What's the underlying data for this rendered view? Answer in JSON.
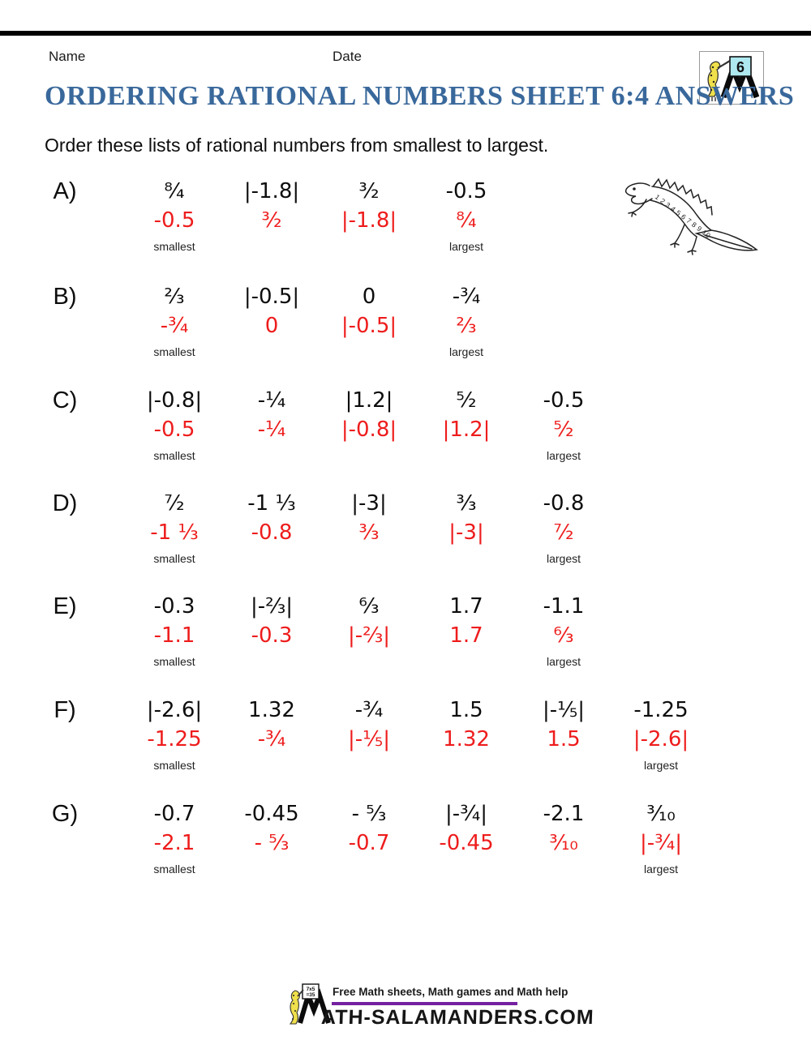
{
  "header": {
    "name_label": "Name",
    "date_label": "Date",
    "logo_number": "6",
    "title": "ORDERING RATIONAL NUMBERS SHEET 6:4 ANSWERS",
    "instruction": "Order these lists of rational numbers from smallest to largest."
  },
  "labels": {
    "smallest": "smallest",
    "largest": "largest"
  },
  "colors": {
    "title_blue": "#39689B",
    "answer_red": "#EE1C1C",
    "footer_purple": "#7420A0",
    "logo_board_cyan": "#AEE9EF",
    "salamander_yellow": "#EFE04C"
  },
  "illustration": {
    "back_numbers": "1 2 3 4 5 6 7 8 9 10"
  },
  "problems": [
    {
      "letter": "A)",
      "question": [
        "⁸⁄₄",
        "|-1.8|",
        "³⁄₂",
        "-0.5"
      ],
      "answer": [
        "-0.5",
        "³⁄₂",
        "|-1.8|",
        "⁸⁄₄"
      ]
    },
    {
      "letter": "B)",
      "question": [
        "²⁄₃",
        "|-0.5|",
        "0",
        "-¾"
      ],
      "answer": [
        "-¾",
        "0",
        "|-0.5|",
        "²⁄₃"
      ]
    },
    {
      "letter": "C)",
      "question": [
        "|-0.8|",
        "-¼",
        "|1.2|",
        "⁵⁄₂",
        "-0.5"
      ],
      "answer": [
        "-0.5",
        "-¼",
        "|-0.8|",
        "|1.2|",
        "⁵⁄₂"
      ]
    },
    {
      "letter": "D)",
      "question": [
        "⁷⁄₂",
        "-1 ⅓",
        "|-3|",
        "³⁄₃",
        "-0.8"
      ],
      "answer": [
        "-1 ⅓",
        "-0.8",
        "³⁄₃",
        "|-3|",
        "⁷⁄₂"
      ]
    },
    {
      "letter": "E)",
      "question": [
        "-0.3",
        "|-⅔|",
        "⁶⁄₃",
        "1.7",
        "-1.1"
      ],
      "answer": [
        "-1.1",
        "-0.3",
        "|-⅔|",
        "1.7",
        "⁶⁄₃"
      ]
    },
    {
      "letter": "F)",
      "question": [
        "|-2.6|",
        "1.32",
        "-¾",
        "1.5",
        "|-⅕|",
        "-1.25"
      ],
      "answer": [
        "-1.25",
        "-¾",
        "|-⅕|",
        "1.32",
        "1.5",
        "|-2.6|"
      ]
    },
    {
      "letter": "G)",
      "question": [
        "-0.7",
        "-0.45",
        "- ⁵⁄₃",
        "|-¾|",
        "-2.1",
        "³⁄₁₀"
      ],
      "answer": [
        "-2.1",
        "- ⁵⁄₃",
        "-0.7",
        "-0.45",
        "³⁄₁₀",
        "|-¾|"
      ]
    }
  ],
  "footer": {
    "tagline": "Free Math sheets, Math games and Math help",
    "site": "ATH-SALAMANDERS.COM",
    "board_line1": "7x5",
    "board_line2": "=35"
  }
}
